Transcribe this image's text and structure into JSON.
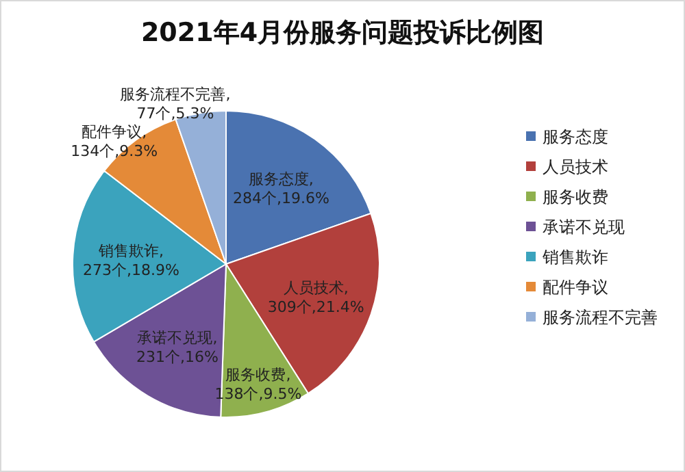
{
  "chart_data": {
    "type": "pie",
    "title": "2021年4月份服务问题投诉比例图",
    "categories": [
      "服务态度",
      "人员技术",
      "服务收费",
      "承诺不兑现",
      "销售欺诈",
      "配件争议",
      "服务流程不完善"
    ],
    "values": [
      284,
      309,
      138,
      231,
      273,
      134,
      77
    ],
    "colors": [
      "#4a72b0",
      "#b2403c",
      "#8fb04e",
      "#6d5195",
      "#3ba3bd",
      "#e48a38",
      "#95b0d8"
    ],
    "value_labels": [
      "服务态度,\n284个,19.6%",
      "人员技术,\n309个,21.4%",
      "服务收费,\n138个,9.5%",
      "承诺不兑现,\n231个,16%",
      "销售欺诈,\n273个,18.9%",
      "配件争议,\n134个,9.3%",
      "服务流程不完善,\n77个,5.3%"
    ],
    "legend": "right"
  }
}
